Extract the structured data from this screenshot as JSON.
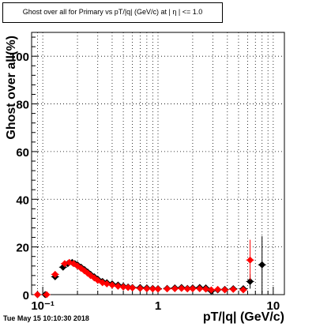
{
  "title": "Ghost over all for Primary vs pT/|q| (GeV/c) at | η | <= 1.0",
  "timestamp": "Tue May 15 10:10:30 2018",
  "colors": {
    "series_black": "#000000",
    "series_red": "#ff0000",
    "grid": "#000000"
  },
  "chart_data": {
    "type": "scatter",
    "xscale": "log",
    "xlim": [
      0.08,
      12.5
    ],
    "ylim": [
      0,
      110
    ],
    "xlabel": "pT/|q| (GeV/c)",
    "ylabel": "Ghost over all(%)",
    "xticks": [
      {
        "value": 0.1,
        "label": "10⁻¹"
      },
      {
        "value": 1,
        "label": "1"
      },
      {
        "value": 10,
        "label": "10"
      }
    ],
    "yticks": [
      {
        "value": 0,
        "label": "0"
      },
      {
        "value": 20,
        "label": "20"
      },
      {
        "value": 40,
        "label": "40"
      },
      {
        "value": 60,
        "label": "60"
      },
      {
        "value": 80,
        "label": "80"
      },
      {
        "value": 100,
        "label": "100"
      }
    ],
    "grid": true,
    "series": [
      {
        "color": "#000000",
        "points": [
          [
            0.09,
            0.0
          ],
          [
            0.105,
            0.0
          ],
          [
            0.128,
            7.5
          ],
          [
            0.15,
            11.5
          ],
          [
            0.165,
            13.0
          ],
          [
            0.18,
            13.5
          ],
          [
            0.19,
            13.0
          ],
          [
            0.2,
            12.5
          ],
          [
            0.215,
            11.5
          ],
          [
            0.23,
            10.5
          ],
          [
            0.245,
            9.5
          ],
          [
            0.26,
            8.5
          ],
          [
            0.28,
            7.5
          ],
          [
            0.3,
            6.5
          ],
          [
            0.33,
            5.5
          ],
          [
            0.36,
            5.0
          ],
          [
            0.4,
            4.5
          ],
          [
            0.45,
            4.0
          ],
          [
            0.5,
            3.5
          ],
          [
            0.55,
            3.2
          ],
          [
            0.6,
            3.0
          ],
          [
            0.7,
            3.0
          ],
          [
            0.8,
            2.8
          ],
          [
            0.9,
            2.6
          ],
          [
            1.0,
            2.5
          ],
          [
            1.2,
            2.6
          ],
          [
            1.4,
            2.8
          ],
          [
            1.6,
            3.0
          ],
          [
            1.8,
            2.6
          ],
          [
            2.0,
            2.8
          ],
          [
            2.3,
            3.0
          ],
          [
            2.6,
            2.8
          ],
          [
            2.9,
            1.5
          ],
          [
            3.3,
            2.0
          ],
          [
            3.8,
            2.2
          ],
          [
            4.5,
            2.5
          ],
          [
            5.5,
            2.5
          ],
          [
            6.3,
            5.5
          ],
          [
            8.0,
            12.5
          ]
        ],
        "errors": [
          [
            6.3,
            3.0
          ],
          [
            8.0,
            12.0
          ]
        ]
      },
      {
        "color": "#ff0000",
        "points": [
          [
            0.09,
            0.0
          ],
          [
            0.108,
            0.0
          ],
          [
            0.128,
            8.5
          ],
          [
            0.155,
            13.0
          ],
          [
            0.17,
            13.5
          ],
          [
            0.185,
            13.0
          ],
          [
            0.2,
            12.0
          ],
          [
            0.215,
            11.0
          ],
          [
            0.23,
            10.0
          ],
          [
            0.245,
            9.0
          ],
          [
            0.26,
            8.0
          ],
          [
            0.28,
            7.0
          ],
          [
            0.3,
            6.0
          ],
          [
            0.33,
            5.0
          ],
          [
            0.36,
            4.5
          ],
          [
            0.4,
            4.0
          ],
          [
            0.45,
            3.5
          ],
          [
            0.5,
            3.2
          ],
          [
            0.55,
            3.0
          ],
          [
            0.6,
            2.8
          ],
          [
            0.7,
            2.6
          ],
          [
            0.8,
            2.5
          ],
          [
            0.9,
            2.4
          ],
          [
            1.0,
            2.3
          ],
          [
            1.2,
            2.4
          ],
          [
            1.4,
            2.5
          ],
          [
            1.6,
            2.6
          ],
          [
            1.8,
            2.4
          ],
          [
            2.0,
            2.5
          ],
          [
            2.3,
            2.5
          ],
          [
            2.6,
            2.3
          ],
          [
            2.9,
            2.0
          ],
          [
            3.3,
            2.2
          ],
          [
            3.8,
            2.0
          ],
          [
            4.5,
            2.2
          ],
          [
            5.5,
            2.0
          ],
          [
            6.3,
            14.5
          ]
        ],
        "errors": [
          [
            6.3,
            8.5
          ]
        ]
      }
    ]
  }
}
